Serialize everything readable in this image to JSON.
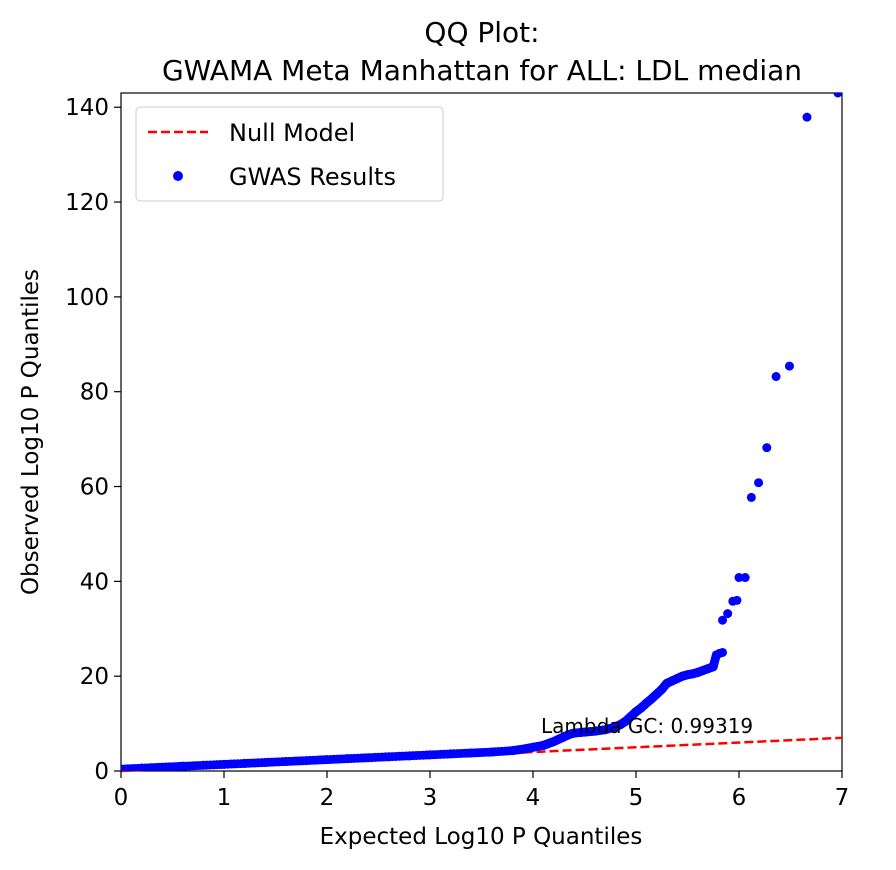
{
  "chart_data": {
    "type": "scatter",
    "title_line1": "QQ Plot:",
    "title_line2": "GWAMA Meta Manhattan for ALL: LDL median",
    "xlabel": "Expected Log10 P Quantiles",
    "ylabel": "Observed Log10 P Quantiles",
    "xlim": [
      0,
      7
    ],
    "ylim": [
      0,
      143
    ],
    "x_ticks": [
      0,
      1,
      2,
      3,
      4,
      5,
      6,
      7
    ],
    "y_ticks": [
      0,
      20,
      40,
      60,
      80,
      100,
      120,
      140
    ],
    "annotation": "Lambda GC: 0.99319",
    "legend_position": "top-left",
    "series": [
      {
        "name": "Null Model",
        "kind": "line",
        "color": "#ff0000",
        "style": "dashed",
        "x": [
          0,
          7
        ],
        "y": [
          0,
          7
        ]
      },
      {
        "name": "GWAS Results",
        "kind": "scatter",
        "color": "#0000ff",
        "points": [
          [
            0.0,
            0.4
          ],
          [
            0.2,
            0.6
          ],
          [
            0.4,
            0.8
          ],
          [
            0.6,
            1.0
          ],
          [
            0.8,
            1.2
          ],
          [
            1.0,
            1.4
          ],
          [
            1.2,
            1.6
          ],
          [
            1.4,
            1.8
          ],
          [
            1.6,
            2.0
          ],
          [
            1.8,
            2.2
          ],
          [
            2.0,
            2.4
          ],
          [
            2.2,
            2.6
          ],
          [
            2.4,
            2.8
          ],
          [
            2.6,
            3.0
          ],
          [
            2.8,
            3.2
          ],
          [
            3.0,
            3.4
          ],
          [
            3.2,
            3.6
          ],
          [
            3.4,
            3.8
          ],
          [
            3.6,
            4.0
          ],
          [
            3.8,
            4.3
          ],
          [
            3.9,
            4.6
          ],
          [
            4.0,
            5.0
          ],
          [
            4.1,
            5.4
          ],
          [
            4.15,
            5.8
          ],
          [
            4.2,
            6.2
          ],
          [
            4.25,
            6.7
          ],
          [
            4.3,
            7.2
          ],
          [
            4.35,
            7.7
          ],
          [
            4.4,
            8.0
          ],
          [
            4.5,
            8.2
          ],
          [
            4.6,
            8.4
          ],
          [
            4.7,
            8.7
          ],
          [
            4.8,
            9.3
          ],
          [
            4.85,
            9.8
          ],
          [
            4.9,
            10.5
          ],
          [
            4.95,
            11.5
          ],
          [
            5.0,
            12.5
          ],
          [
            5.05,
            13.3
          ],
          [
            5.1,
            14.3
          ],
          [
            5.15,
            15.2
          ],
          [
            5.2,
            16.2
          ],
          [
            5.25,
            17.2
          ],
          [
            5.3,
            18.5
          ],
          [
            5.35,
            19.0
          ],
          [
            5.4,
            19.5
          ],
          [
            5.45,
            20.0
          ],
          [
            5.5,
            20.3
          ],
          [
            5.55,
            20.5
          ],
          [
            5.6,
            20.8
          ],
          [
            5.65,
            21.2
          ],
          [
            5.7,
            21.6
          ],
          [
            5.75,
            22.0
          ],
          [
            5.78,
            24.5
          ],
          [
            5.81,
            24.8
          ],
          [
            5.84,
            25.0
          ],
          [
            5.84,
            31.8
          ],
          [
            5.89,
            33.2
          ],
          [
            5.94,
            35.8
          ],
          [
            5.98,
            36.0
          ],
          [
            6.0,
            40.8
          ],
          [
            6.06,
            40.8
          ],
          [
            6.12,
            57.7
          ],
          [
            6.19,
            60.8
          ],
          [
            6.27,
            68.2
          ],
          [
            6.36,
            83.2
          ],
          [
            6.49,
            85.4
          ],
          [
            6.66,
            137.9
          ],
          [
            6.96,
            143.0
          ]
        ]
      }
    ]
  }
}
